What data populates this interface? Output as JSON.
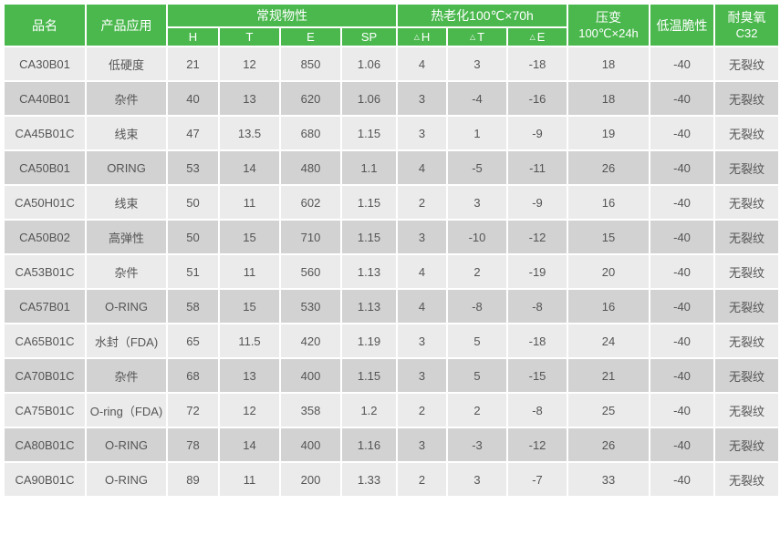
{
  "chart_data": {
    "type": "table",
    "header": {
      "product_name": "品名",
      "application": "产品应用",
      "physical_group": "常规物性",
      "physical_cols": [
        "H",
        "T",
        "E",
        "SP"
      ],
      "aging_group": "热老化100℃×70h",
      "delta": "△",
      "aging_cols": [
        "H",
        "T",
        "E"
      ],
      "compression_line1": "压变",
      "compression_line2": "100℃×24h",
      "low_temp_brittleness": "低温脆性",
      "ozone_line1": "耐臭氧",
      "ozone_line2": "C32"
    },
    "rows": [
      {
        "name": "CA30B01",
        "application": "低硬度",
        "H": "21",
        "T": "12",
        "E": "850",
        "SP": "1.06",
        "dH": "4",
        "dT": "3",
        "dE": "-18",
        "compression_set": "18",
        "low_temp": "-40",
        "ozone": "无裂纹"
      },
      {
        "name": "CA40B01",
        "application": "杂件",
        "H": "40",
        "T": "13",
        "E": "620",
        "SP": "1.06",
        "dH": "3",
        "dT": "-4",
        "dE": "-16",
        "compression_set": "18",
        "low_temp": "-40",
        "ozone": "无裂纹"
      },
      {
        "name": "CA45B01C",
        "application": "线束",
        "H": "47",
        "T": "13.5",
        "E": "680",
        "SP": "1.15",
        "dH": "3",
        "dT": "1",
        "dE": "-9",
        "compression_set": "19",
        "low_temp": "-40",
        "ozone": "无裂纹"
      },
      {
        "name": "CA50B01",
        "application": "ORING",
        "H": "53",
        "T": "14",
        "E": "480",
        "SP": "1.1",
        "dH": "4",
        "dT": "-5",
        "dE": "-11",
        "compression_set": "26",
        "low_temp": "-40",
        "ozone": "无裂纹"
      },
      {
        "name": "CA50H01C",
        "application": "线束",
        "H": "50",
        "T": "11",
        "E": "602",
        "SP": "1.15",
        "dH": "2",
        "dT": "3",
        "dE": "-9",
        "compression_set": "16",
        "low_temp": "-40",
        "ozone": "无裂纹"
      },
      {
        "name": "CA50B02",
        "application": "高弹性",
        "H": "50",
        "T": "15",
        "E": "710",
        "SP": "1.15",
        "dH": "3",
        "dT": "-10",
        "dE": "-12",
        "compression_set": "15",
        "low_temp": "-40",
        "ozone": "无裂纹"
      },
      {
        "name": "CA53B01C",
        "application": "杂件",
        "H": "51",
        "T": "11",
        "E": "560",
        "SP": "1.13",
        "dH": "4",
        "dT": "2",
        "dE": "-19",
        "compression_set": "20",
        "low_temp": "-40",
        "ozone": "无裂纹"
      },
      {
        "name": "CA57B01",
        "application": "O-RING",
        "H": "58",
        "T": "15",
        "E": "530",
        "SP": "1.13",
        "dH": "4",
        "dT": "-8",
        "dE": "-8",
        "compression_set": "16",
        "low_temp": "-40",
        "ozone": "无裂纹"
      },
      {
        "name": "CA65B01C",
        "application": "水封（FDA)",
        "H": "65",
        "T": "11.5",
        "E": "420",
        "SP": "1.19",
        "dH": "3",
        "dT": "5",
        "dE": "-18",
        "compression_set": "24",
        "low_temp": "-40",
        "ozone": "无裂纹"
      },
      {
        "name": "CA70B01C",
        "application": "杂件",
        "H": "68",
        "T": "13",
        "E": "400",
        "SP": "1.15",
        "dH": "3",
        "dT": "5",
        "dE": "-15",
        "compression_set": "21",
        "low_temp": "-40",
        "ozone": "无裂纹"
      },
      {
        "name": "CA75B01C",
        "application": "O-ring（FDA)",
        "H": "72",
        "T": "12",
        "E": "358",
        "SP": "1.2",
        "dH": "2",
        "dT": "2",
        "dE": "-8",
        "compression_set": "25",
        "low_temp": "-40",
        "ozone": "无裂纹"
      },
      {
        "name": "CA80B01C",
        "application": "O-RING",
        "H": "78",
        "T": "14",
        "E": "400",
        "SP": "1.16",
        "dH": "3",
        "dT": "-3",
        "dE": "-12",
        "compression_set": "26",
        "low_temp": "-40",
        "ozone": "无裂纹"
      },
      {
        "name": "CA90B01C",
        "application": "O-RING",
        "H": "89",
        "T": "11",
        "E": "200",
        "SP": "1.33",
        "dH": "2",
        "dT": "3",
        "dE": "-7",
        "compression_set": "33",
        "low_temp": "-40",
        "ozone": "无裂纹"
      }
    ]
  },
  "colors": {
    "header_green": "#4bb84e",
    "row_light": "#ebebeb",
    "row_dark": "#d2d2d2",
    "body_text": "#555555",
    "header_text": "#ffffff"
  }
}
